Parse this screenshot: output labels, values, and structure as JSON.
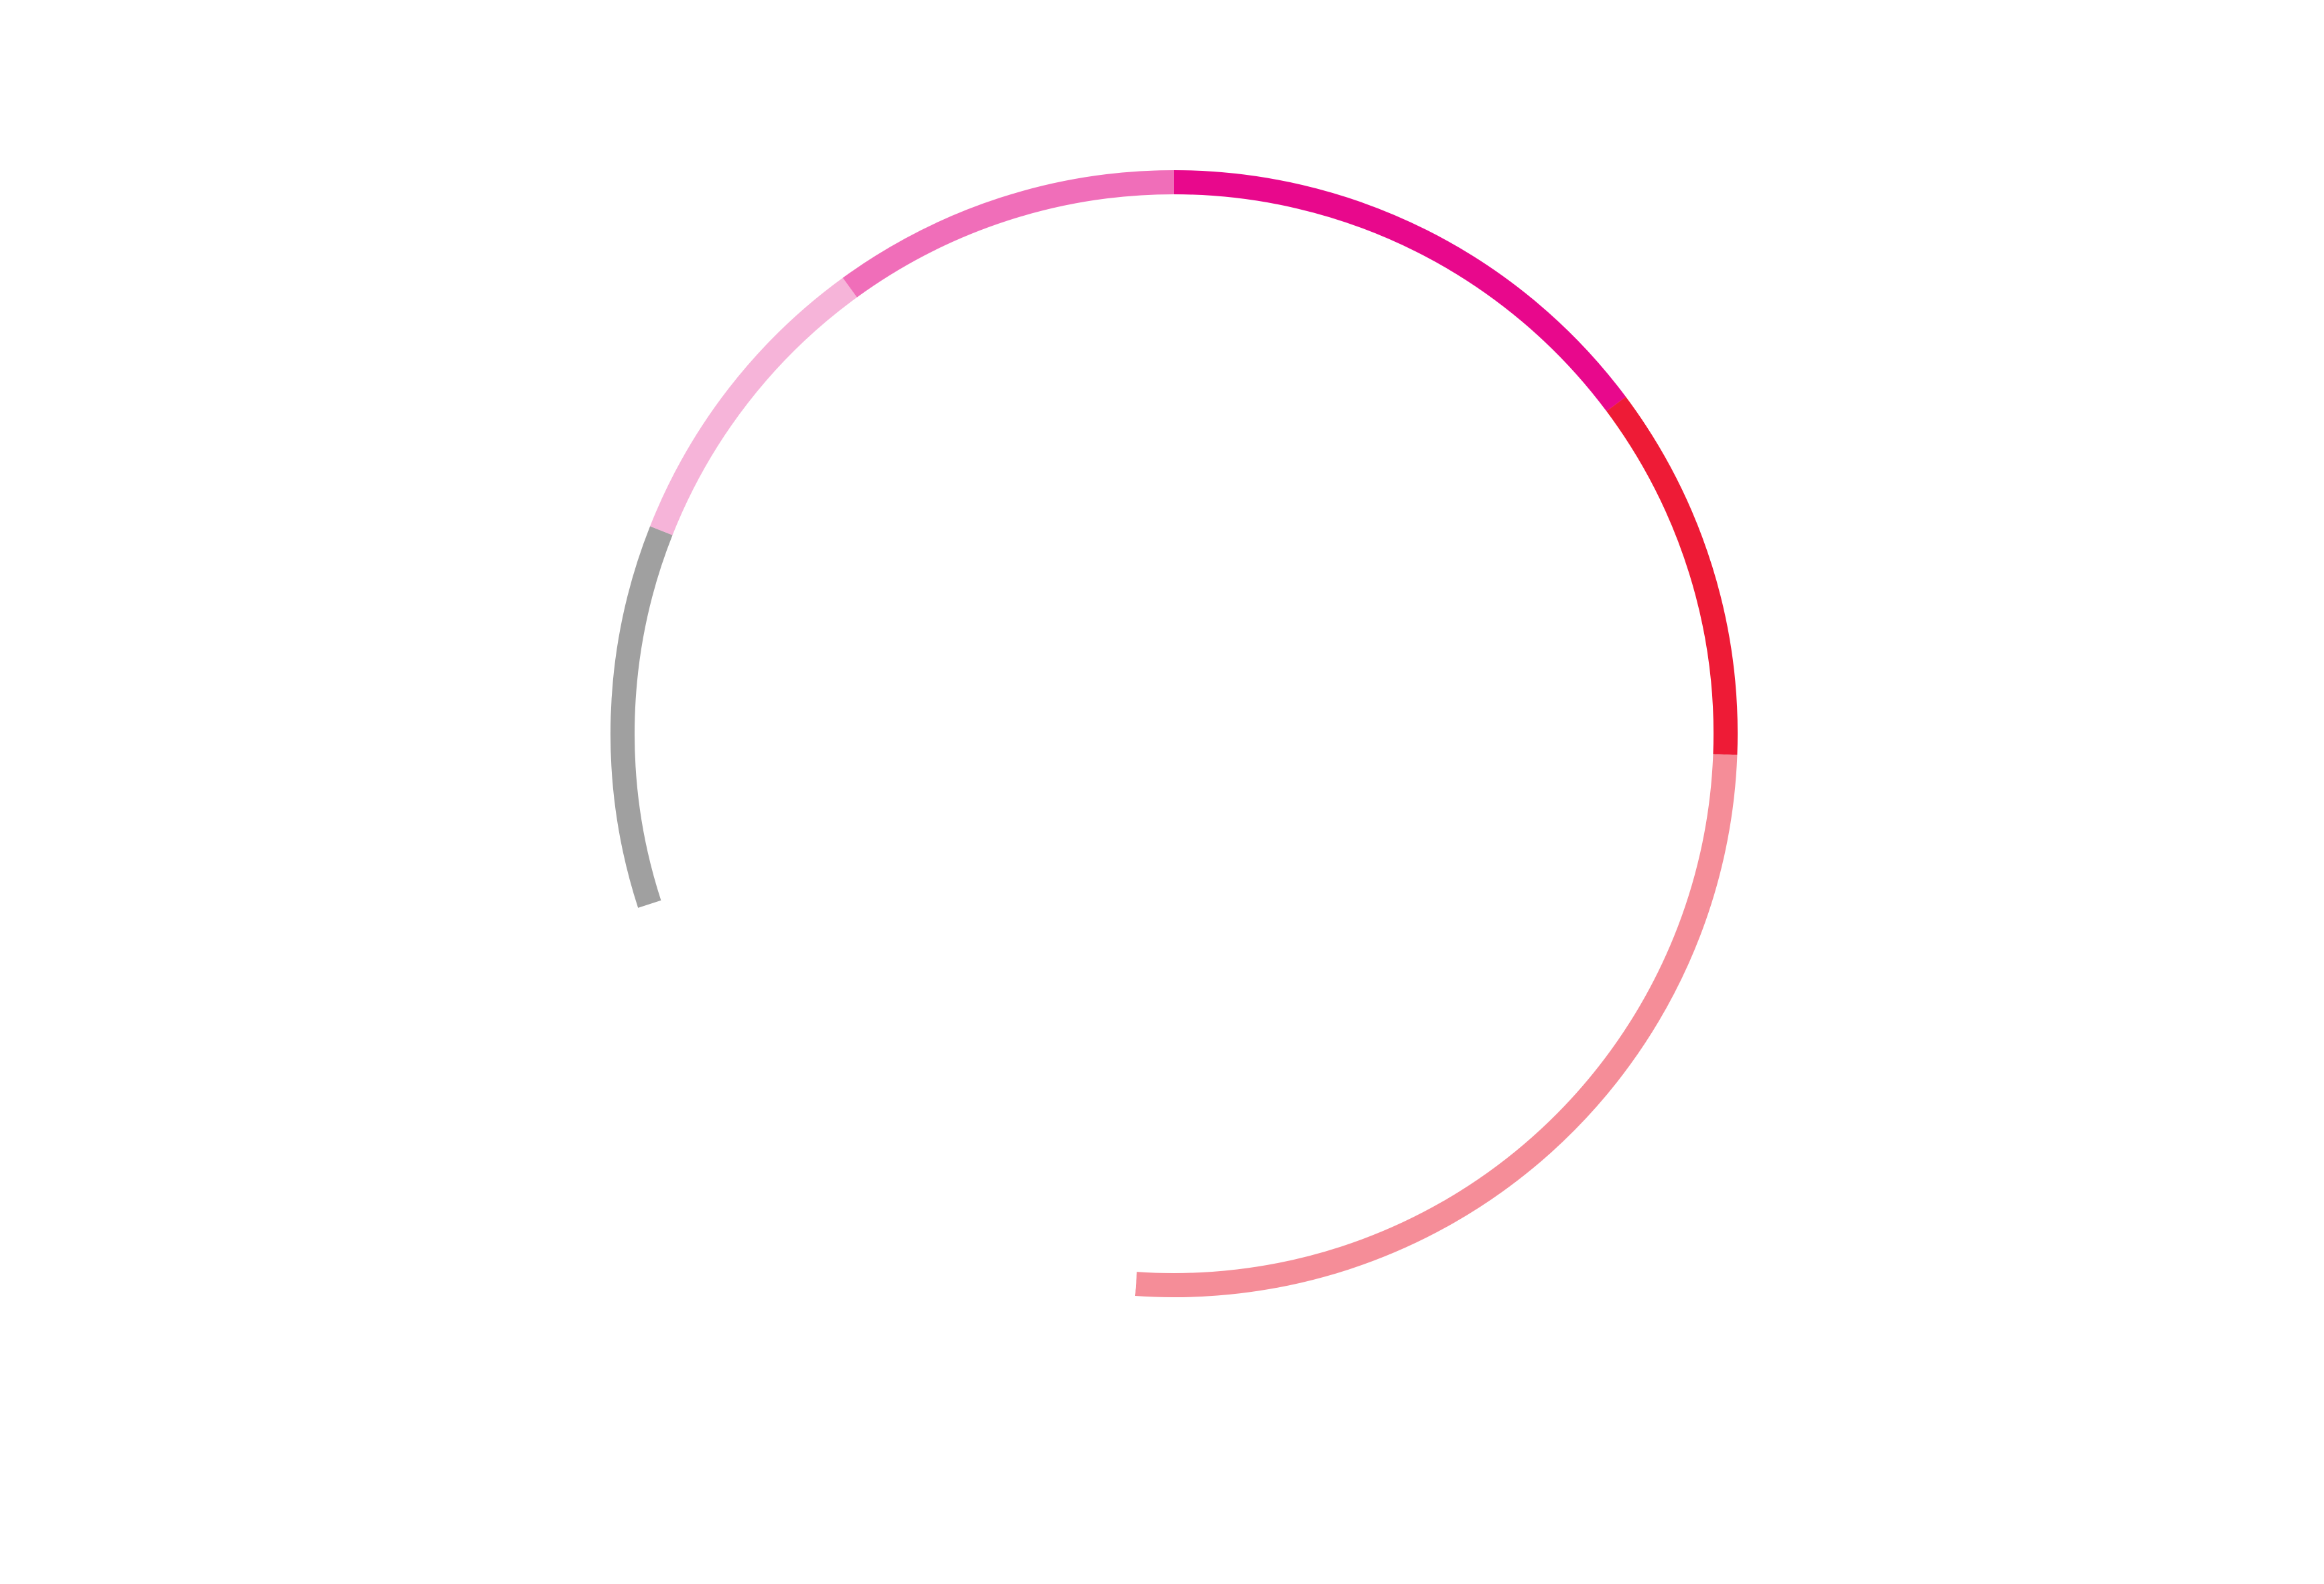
{
  "chart_data": {
    "type": "pie",
    "variant": "segmented-ring",
    "title": "",
    "legend": "none",
    "labels": "none",
    "direction": "clockwise",
    "start_at": "top",
    "segments": [
      {
        "value": 14.8,
        "color": "#E8088C"
      },
      {
        "value": 10.8,
        "color": "#EE1B36"
      },
      {
        "value": 25.5,
        "color": "#F58D98"
      },
      {
        "value": 18.9,
        "color": "#FFFFFF"
      },
      {
        "value": 11.0,
        "color": "#A0A0A0"
      },
      {
        "value": 9.0,
        "color": "#F6B4D9"
      },
      {
        "value": 10.0,
        "color": "#F06EB9"
      }
    ]
  }
}
